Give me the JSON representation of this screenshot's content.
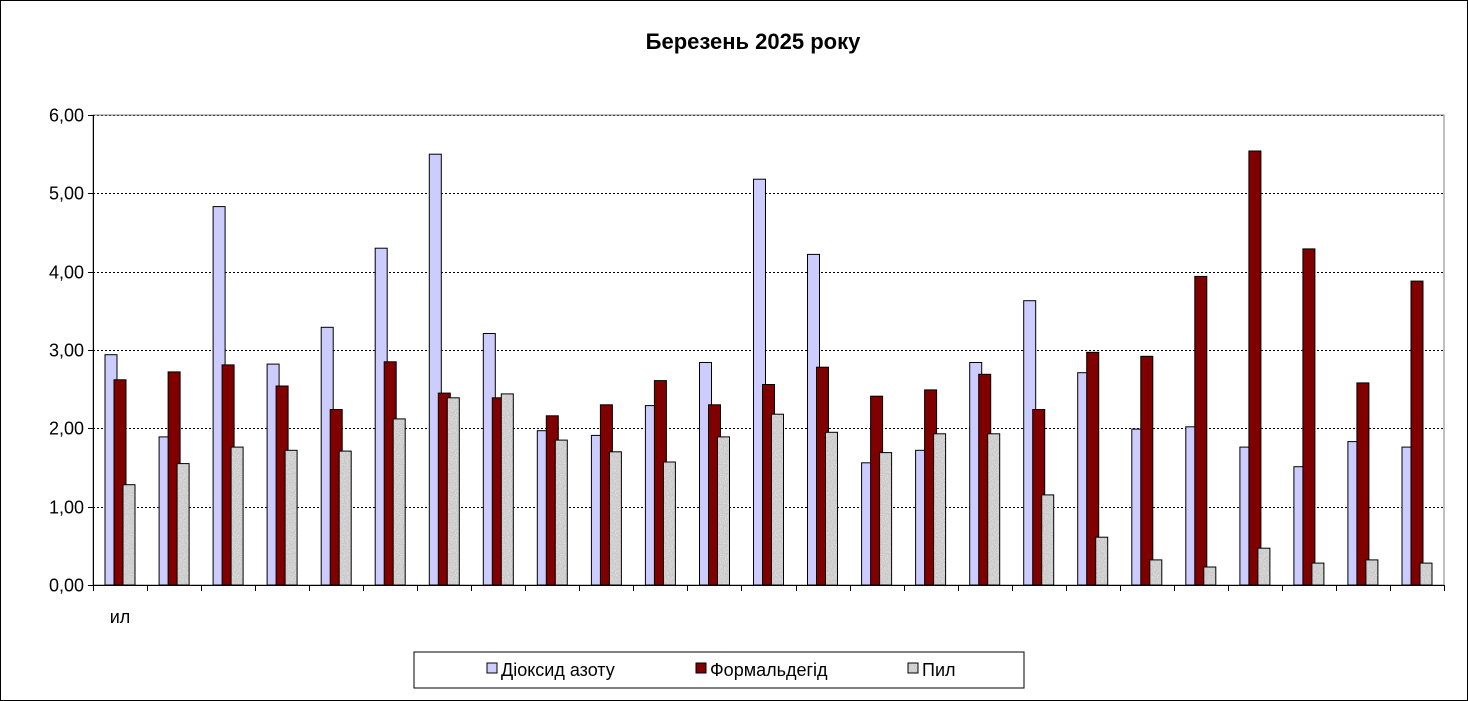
{
  "chart_data": {
    "type": "bar",
    "title": "Березень 2025 року",
    "xlabel": "",
    "ylabel": "",
    "ylim": [
      0,
      6
    ],
    "yticks": [
      "0,00",
      "1,00",
      "2,00",
      "3,00",
      "4,00",
      "5,00",
      "6,00"
    ],
    "categories": [
      "ил",
      "",
      "",
      "",
      "",
      "",
      "",
      "",
      "",
      "",
      "",
      "",
      "",
      "",
      "",
      "",
      "",
      "",
      "",
      "",
      "",
      "",
      "",
      "",
      ""
    ],
    "grid": true,
    "legend": "bottom",
    "series": [
      {
        "name": "Діоксид азоту",
        "color": "#ccccff",
        "pattern": "solid",
        "values": [
          2.94,
          1.89,
          4.83,
          2.82,
          3.29,
          4.3,
          5.5,
          3.21,
          1.97,
          1.91,
          2.29,
          2.84,
          5.18,
          4.22,
          1.56,
          1.72,
          2.84,
          3.63,
          2.71,
          1.99,
          2.02,
          1.76,
          1.51,
          1.83,
          1.76
        ]
      },
      {
        "name": "Формальдегід",
        "color": "#800000",
        "pattern": "solid",
        "values": [
          2.62,
          2.72,
          2.81,
          2.54,
          2.24,
          2.85,
          2.45,
          2.39,
          2.16,
          2.3,
          2.61,
          2.3,
          2.56,
          2.78,
          2.41,
          2.49,
          2.69,
          2.24,
          2.97,
          2.92,
          3.94,
          5.54,
          4.29,
          2.58,
          3.88
        ]
      },
      {
        "name": "Пил",
        "color": "#c0c0c0",
        "pattern": "granite",
        "values": [
          1.28,
          1.55,
          1.76,
          1.72,
          1.71,
          2.12,
          2.39,
          2.44,
          1.85,
          1.7,
          1.57,
          1.89,
          2.18,
          1.95,
          1.69,
          1.93,
          1.93,
          1.15,
          0.61,
          0.32,
          0.23,
          0.47,
          0.28,
          0.32,
          0.28
        ]
      }
    ]
  }
}
